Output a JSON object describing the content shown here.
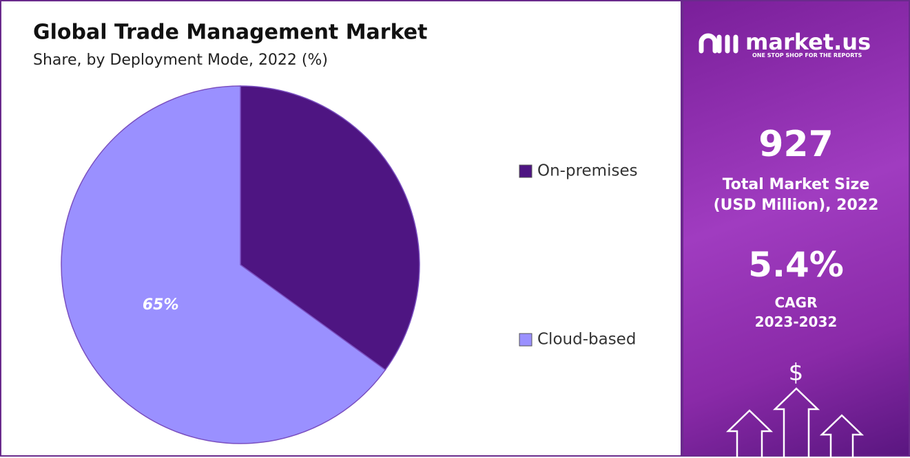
{
  "chart_data": {
    "type": "pie",
    "title": "Global Trade Management Market",
    "subtitle": "Share, by Deployment Mode, 2022 (%)",
    "categories": [
      "On-premises",
      "Cloud-based"
    ],
    "values": [
      35,
      65
    ],
    "value_labels": [
      null,
      "65%"
    ],
    "colors": [
      "#4e1582",
      "#9a90ff"
    ]
  },
  "sidebar": {
    "logo": "market.us",
    "tagline": "ONE STOP SHOP FOR THE REPORTS",
    "market_size": "927",
    "market_size_label": [
      "Total Market Size",
      "(USD Million), 2022"
    ],
    "cagr": "5.4%",
    "cagr_label": [
      "CAGR",
      "2023-2032"
    ],
    "icon": "$"
  }
}
